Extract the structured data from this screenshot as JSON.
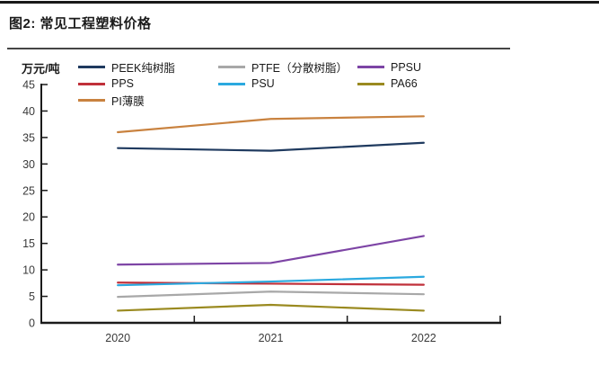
{
  "figure": {
    "title": "图2: 常见工程塑料价格"
  },
  "chart_data": {
    "type": "line",
    "title": "图2: 常见工程塑料价格",
    "unit_label": "万元/吨",
    "x": [
      "2020",
      "2021",
      "2022"
    ],
    "ylim": [
      0,
      45
    ],
    "yticks": [
      0,
      5,
      10,
      15,
      20,
      25,
      30,
      35,
      40,
      45
    ],
    "grid": false,
    "legend_position": "top",
    "axis_color": "#1a1a1a",
    "tick_label_color": "#3a3a3a",
    "series": [
      {
        "name": "PEEK纯树脂",
        "color": "#1F3A5F",
        "legend_column": 1,
        "values": [
          33,
          32.5,
          34
        ]
      },
      {
        "name": "PPS",
        "color": "#C0303A",
        "legend_column": 1,
        "values": [
          7.6,
          7.4,
          7.2
        ]
      },
      {
        "name": "PI薄膜",
        "color": "#C9823F",
        "legend_column": 1,
        "values": [
          36,
          38.5,
          39
        ]
      },
      {
        "name": "PTFE（分散树脂）",
        "color": "#A8A8A8",
        "legend_column": 2,
        "values": [
          4.9,
          5.9,
          5.4
        ]
      },
      {
        "name": "PSU",
        "color": "#2BA9DF",
        "legend_column": 2,
        "values": [
          7.1,
          7.8,
          8.7
        ]
      },
      {
        "name": "PPSU",
        "color": "#7D44A5",
        "legend_column": 3,
        "values": [
          11,
          11.3,
          16.4
        ]
      },
      {
        "name": "PA66",
        "color": "#9A8A20",
        "legend_column": 3,
        "values": [
          2.3,
          3.4,
          2.3
        ]
      }
    ]
  }
}
